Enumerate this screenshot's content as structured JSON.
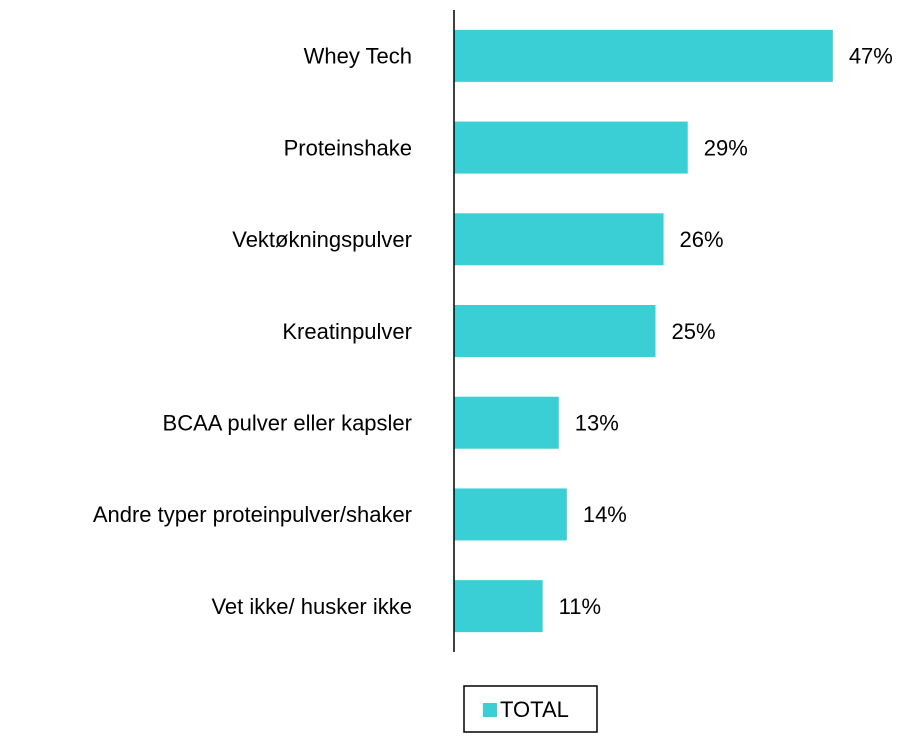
{
  "chart_data": {
    "type": "barh",
    "categories": [
      "Whey Tech",
      "Proteinshake",
      "Vektøkningspulver",
      "Kreatinpulver",
      "BCAA pulver eller kapsler",
      "Andre typer proteinpulver/shaker",
      "Vet ikke/ husker ikke"
    ],
    "series": [
      {
        "name": "TOTAL",
        "color": "#3acfd5",
        "values": [
          47,
          29,
          26,
          25,
          13,
          14,
          11
        ],
        "value_labels": [
          "47%",
          "29%",
          "26%",
          "25%",
          "13%",
          "14%",
          "11%"
        ]
      }
    ],
    "xlim": [
      0,
      50
    ],
    "legend": "bottom"
  }
}
